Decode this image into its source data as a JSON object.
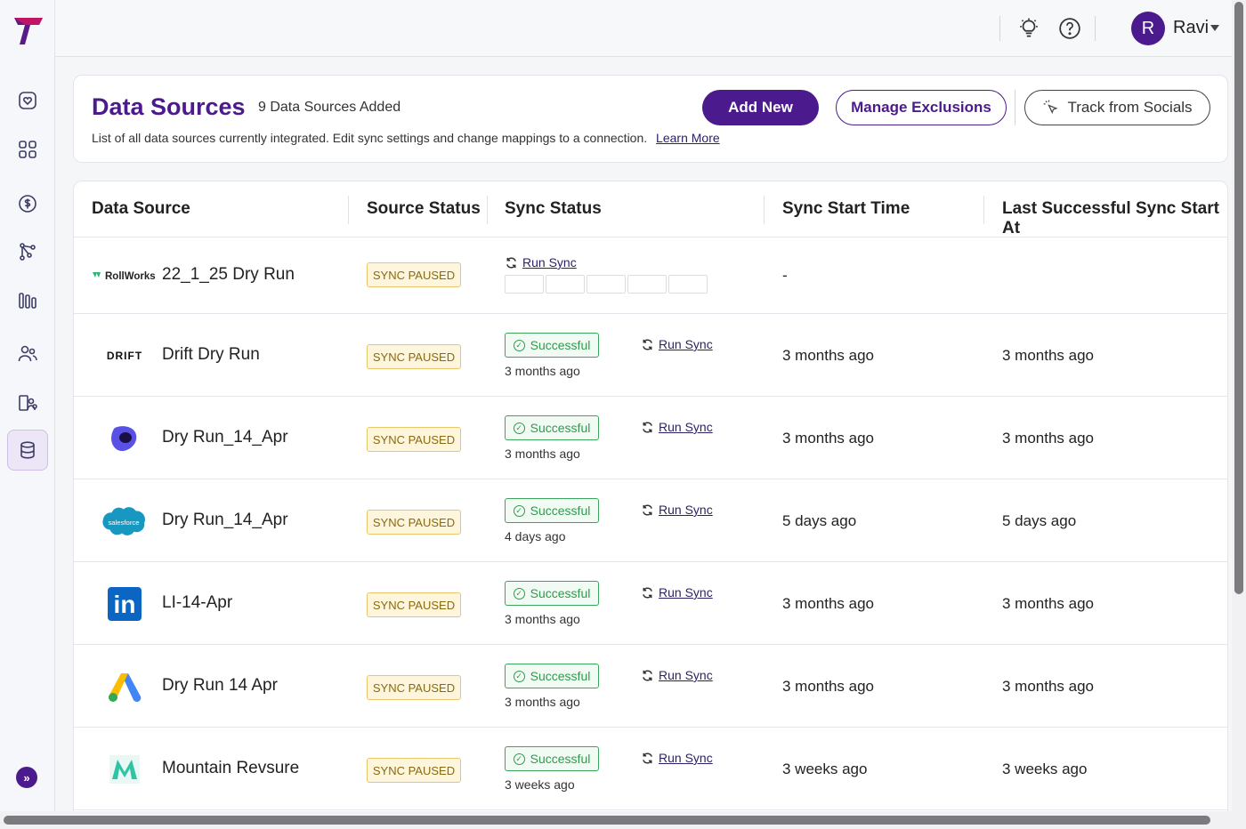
{
  "topbar": {
    "user_initial": "R",
    "user_name": "Ravi"
  },
  "header": {
    "title": "Data Sources",
    "count": "9 Data Sources Added",
    "description": "List of all data sources currently integrated. Edit sync settings and change mappings to a connection.",
    "learn_more": "Learn More",
    "add_new": "Add New",
    "manage_exclusions": "Manage Exclusions",
    "track_socials": "Track from Socials"
  },
  "table": {
    "columns": [
      "Data Source",
      "Source Status",
      "Sync Status",
      "Sync Start Time",
      "Last Successful Sync Start At"
    ],
    "run_sync_label": "Run Sync",
    "success_label": "Successful",
    "rows": [
      {
        "logo": "rollworks-logo",
        "logo_text": "RollWorks",
        "name": "22_1_25 Dry Run",
        "status": "SYNC PAUSED",
        "sync_ago": "",
        "start": "-",
        "last": ""
      },
      {
        "logo": "drift-logo",
        "logo_text": "DRIFT",
        "name": "Drift Dry Run",
        "status": "SYNC PAUSED",
        "sync_ago": "3 months ago",
        "start": "3 months ago",
        "last": "3 months ago"
      },
      {
        "logo": "outreach-logo",
        "logo_text": "",
        "name": "Dry Run_14_Apr",
        "status": "SYNC PAUSED",
        "sync_ago": "3 months ago",
        "start": "3 months ago",
        "last": "3 months ago"
      },
      {
        "logo": "salesforce-logo",
        "logo_text": "salesforce",
        "name": "Dry Run_14_Apr",
        "status": "SYNC PAUSED",
        "sync_ago": "4 days ago",
        "start": "5 days ago",
        "last": "5 days ago"
      },
      {
        "logo": "linkedin-logo",
        "logo_text": "in",
        "name": "LI-14-Apr",
        "status": "SYNC PAUSED",
        "sync_ago": "3 months ago",
        "start": "3 months ago",
        "last": "3 months ago"
      },
      {
        "logo": "google-ads-logo",
        "logo_text": "",
        "name": "Dry Run 14 Apr",
        "status": "SYNC PAUSED",
        "sync_ago": "3 months ago",
        "start": "3 months ago",
        "last": "3 months ago"
      },
      {
        "logo": "mountain-logo",
        "logo_text": "",
        "name": "Mountain Revsure",
        "status": "SYNC PAUSED",
        "sync_ago": "3 weeks ago",
        "start": "3 weeks ago",
        "last": "3 weeks ago"
      }
    ]
  },
  "colors": {
    "brand": "#4b1a8c",
    "success": "#2f9a4e",
    "paused_bg": "#fdf6dc",
    "paused_border": "#e7c66a"
  }
}
